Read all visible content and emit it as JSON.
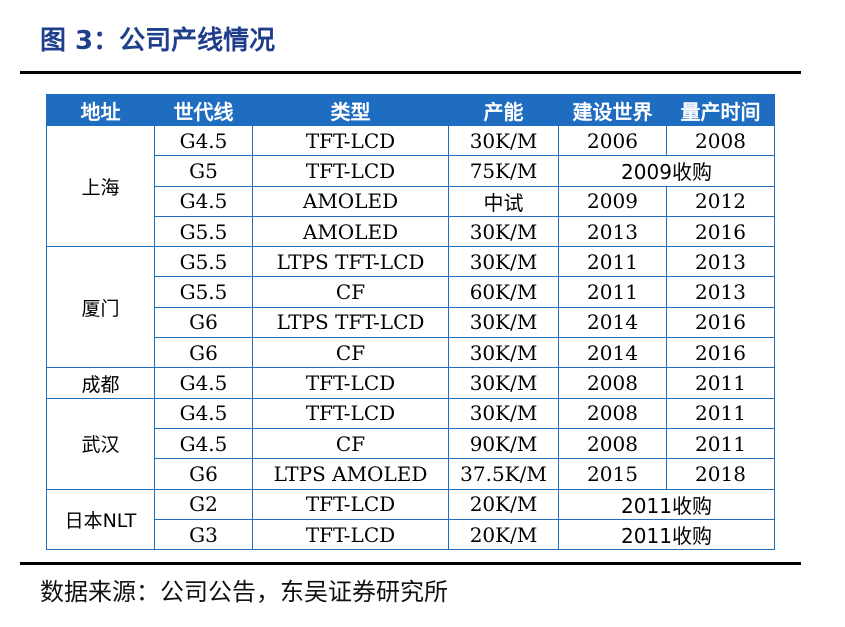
{
  "title": "图 3：公司产线情况",
  "source": "数据来源：公司公告，东吴证券研究所",
  "table": {
    "headers": [
      "地址",
      "世代线",
      "类型",
      "产能",
      "建设世界",
      "量产时间"
    ],
    "groups": [
      {
        "location": "上海",
        "rows": [
          {
            "gen": "G4.5",
            "type": "TFT-LCD",
            "capacity": "30K/M",
            "build": "2006",
            "mass": "2008"
          },
          {
            "gen": "G5",
            "type": "TFT-LCD",
            "capacity": "75K/M",
            "merged": "2009收购"
          },
          {
            "gen": "G4.5",
            "type": "AMOLED",
            "capacity": "中试",
            "build": "2009",
            "mass": "2012"
          },
          {
            "gen": "G5.5",
            "type": "AMOLED",
            "capacity": "30K/M",
            "build": "2013",
            "mass": "2016"
          }
        ]
      },
      {
        "location": "厦门",
        "rows": [
          {
            "gen": "G5.5",
            "type": "LTPS TFT-LCD",
            "capacity": "30K/M",
            "build": "2011",
            "mass": "2013"
          },
          {
            "gen": "G5.5",
            "type": "CF",
            "capacity": "60K/M",
            "build": "2011",
            "mass": "2013"
          },
          {
            "gen": "G6",
            "type": "LTPS TFT-LCD",
            "capacity": "30K/M",
            "build": "2014",
            "mass": "2016"
          },
          {
            "gen": "G6",
            "type": "CF",
            "capacity": "30K/M",
            "build": "2014",
            "mass": "2016"
          }
        ]
      },
      {
        "location": "成都",
        "rows": [
          {
            "gen": "G4.5",
            "type": "TFT-LCD",
            "capacity": "30K/M",
            "build": "2008",
            "mass": "2011"
          }
        ]
      },
      {
        "location": "武汉",
        "rows": [
          {
            "gen": "G4.5",
            "type": "TFT-LCD",
            "capacity": "30K/M",
            "build": "2008",
            "mass": "2011"
          },
          {
            "gen": "G4.5",
            "type": "CF",
            "capacity": "90K/M",
            "build": "2008",
            "mass": "2011"
          },
          {
            "gen": "G6",
            "type": "LTPS AMOLED",
            "capacity": "37.5K/M",
            "build": "2015",
            "mass": "2018"
          }
        ]
      },
      {
        "location": "日本NLT",
        "rows": [
          {
            "gen": "G2",
            "type": "TFT-LCD",
            "capacity": "20K/M",
            "merged": "2011收购"
          },
          {
            "gen": "G3",
            "type": "TFT-LCD",
            "capacity": "20K/M",
            "merged": "2011收购"
          }
        ]
      }
    ]
  }
}
